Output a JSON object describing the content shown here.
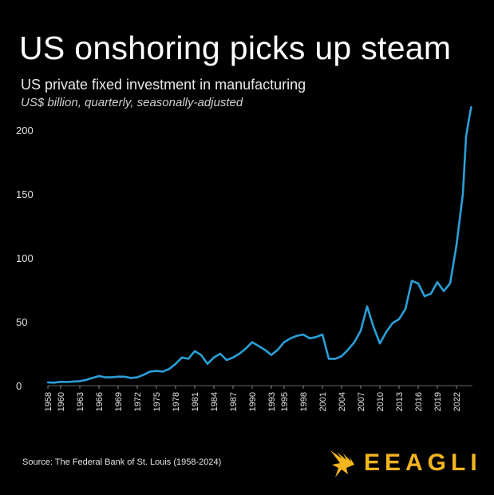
{
  "header": {
    "title": "US onshoring picks up steam",
    "subtitle": "US private fixed investment in manufacturing",
    "units": "US$ billion, quarterly, seasonally-adjusted"
  },
  "footer": {
    "source": "Source: The Federal Bank of St. Louis (1958-2024)",
    "brand": "EEAGLI",
    "brand_color": "#f2b51e",
    "brand_icon": "eagle-icon"
  },
  "chart_data": {
    "type": "line",
    "title": "US onshoring picks up steam",
    "xlabel": "",
    "ylabel": "",
    "xlim": [
      1958,
      2024.5
    ],
    "ylim": [
      0,
      220
    ],
    "yticks": [
      0,
      50,
      100,
      150,
      200
    ],
    "xticks": [
      1958,
      1960,
      1963,
      1966,
      1969,
      1972,
      1975,
      1978,
      1981,
      1984,
      1987,
      1990,
      1993,
      1995,
      1998,
      2001,
      2004,
      2007,
      2010,
      2013,
      2016,
      2019,
      2022
    ],
    "grid": false,
    "legend": "none",
    "series": [
      {
        "color": "#2a9fd8",
        "x": [
          1958,
          1959,
          1960,
          1961,
          1962,
          1963,
          1964,
          1965,
          1966,
          1967,
          1968,
          1969,
          1970,
          1971,
          1972,
          1973,
          1974,
          1975,
          1976,
          1977,
          1978,
          1979,
          1980,
          1981,
          1982,
          1983,
          1984,
          1985,
          1986,
          1987,
          1988,
          1989,
          1990,
          1991,
          1992,
          1993,
          1994,
          1995,
          1996,
          1997,
          1998,
          1999,
          2000,
          2001,
          2002,
          2003,
          2004,
          2005,
          2006,
          2007,
          2008,
          2009,
          2010,
          2011,
          2012,
          2013,
          2014,
          2015,
          2016,
          2017,
          2018,
          2019,
          2020,
          2021,
          2022,
          2023,
          2023.5,
          2024,
          2024.3
        ],
        "y": [
          2.5,
          2.3,
          3,
          2.8,
          3.2,
          3.5,
          4.5,
          6,
          7.5,
          6.5,
          6.5,
          7,
          7,
          6,
          6.5,
          8.5,
          11,
          11.5,
          11,
          13,
          17,
          22,
          21,
          27,
          24,
          17,
          22,
          25,
          20,
          22,
          25,
          29,
          34,
          31,
          28,
          24,
          28,
          34,
          37,
          39,
          40,
          37,
          38,
          40,
          21,
          21,
          23,
          28,
          34,
          43,
          62,
          46,
          33,
          42,
          49,
          52,
          60,
          82,
          80,
          70,
          72,
          81,
          74,
          80,
          110,
          150,
          195,
          210,
          218
        ]
      }
    ]
  }
}
